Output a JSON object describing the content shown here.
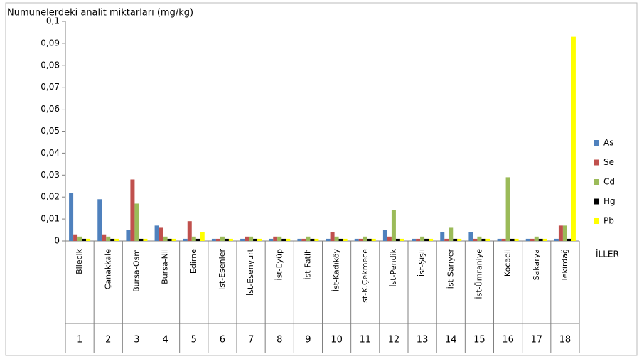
{
  "chart_data": {
    "type": "bar",
    "title": "Numunelerdeki analit miktarları (mg/kg)",
    "x_label": "İLLER",
    "categories": [
      "Bilecik",
      "Çanakkale",
      "Bursa-Osm",
      "Bursa-Nil",
      "Edirne",
      "İst-Esenler",
      "İst-Esenyurt",
      "İst-Eyüp",
      "İst-Fatih",
      "İst-Kadıköy",
      "İst-K.Çekmece",
      "İst-Pendik",
      "İst-Şişli",
      "İst-Sarıyer",
      "İst-Ümraniye",
      "Kocaeli",
      "Sakarya",
      "Tekirdağ"
    ],
    "category_numbers": [
      "1",
      "2",
      "3",
      "4",
      "5",
      "6",
      "7",
      "8",
      "9",
      "10",
      "11",
      "12",
      "13",
      "14",
      "15",
      "16",
      "17",
      "18"
    ],
    "series": [
      {
        "name": "As",
        "color": "#4f81bd",
        "values": [
          0.022,
          0.019,
          0.005,
          0.007,
          0.001,
          0.001,
          0.001,
          0.001,
          0.001,
          0.001,
          0.001,
          0.005,
          0.001,
          0.004,
          0.004,
          0.001,
          0.001,
          0.001
        ]
      },
      {
        "name": "Se",
        "color": "#c0504d",
        "values": [
          0.003,
          0.003,
          0.028,
          0.006,
          0.009,
          0.001,
          0.002,
          0.002,
          0.001,
          0.004,
          0.001,
          0.002,
          0.001,
          0.001,
          0.001,
          0.001,
          0.001,
          0.007
        ]
      },
      {
        "name": "Cd",
        "color": "#9bbb59",
        "values": [
          0.002,
          0.002,
          0.017,
          0.002,
          0.002,
          0.002,
          0.002,
          0.002,
          0.002,
          0.002,
          0.002,
          0.014,
          0.002,
          0.006,
          0.002,
          0.029,
          0.002,
          0.007
        ]
      },
      {
        "name": "Hg",
        "color": "#000000",
        "values": [
          0.001,
          0.001,
          0.001,
          0.001,
          0.001,
          0.001,
          0.001,
          0.001,
          0.001,
          0.001,
          0.001,
          0.001,
          0.001,
          0.001,
          0.001,
          0.001,
          0.001,
          0.001
        ]
      },
      {
        "name": "Pb",
        "color": "#ffff00",
        "values": [
          0.001,
          0.001,
          0.001,
          0.001,
          0.004,
          0.001,
          0.001,
          0.001,
          0.001,
          0.001,
          0.001,
          0.001,
          0.001,
          0.001,
          0.001,
          0.001,
          0.001,
          0.093
        ]
      }
    ],
    "ylim": [
      0,
      0.1
    ],
    "yticks": [
      0,
      {
        "value": 0.01,
        "label": "0,01"
      },
      {
        "value": 0.02,
        "label": "0,02"
      },
      {
        "value": 0.03,
        "label": "0,03"
      },
      {
        "value": 0.04,
        "label": "0,04"
      },
      {
        "value": 0.05,
        "label": "0,05"
      },
      {
        "value": 0.06,
        "label": "0,06"
      },
      {
        "value": 0.07,
        "label": "0,07"
      },
      {
        "value": 0.08,
        "label": "0,08"
      },
      {
        "value": 0.09,
        "label": "0,09"
      },
      {
        "value": 0.1,
        "label": "0,1"
      }
    ],
    "legend": "right"
  }
}
